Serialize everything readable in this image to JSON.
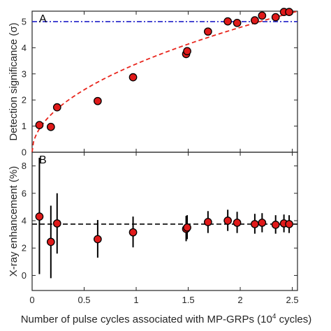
{
  "chart_data": [
    {
      "panel": "A",
      "type": "scatter",
      "xlabel": "Number of pulse cycles associated with MP-GRPs (10",
      "xlabel_sup": "4",
      "xlabel_suffix": " cycles)",
      "ylabel": "Detection significance (σ)",
      "xlim": [
        0,
        2.55
      ],
      "ylim": [
        0,
        5.4
      ],
      "xticks": [
        0,
        0.5,
        1,
        1.5,
        2,
        2.5
      ],
      "xtick_labels": [
        "0",
        "0.5",
        "1",
        "1.5",
        "2",
        "2.5"
      ],
      "yticks": [
        0,
        1,
        2,
        3,
        4,
        5
      ],
      "ytick_labels": [
        "0",
        "1",
        "2",
        "3",
        "4",
        "5"
      ],
      "points": [
        {
          "x": 0.07,
          "y": 1.04
        },
        {
          "x": 0.18,
          "y": 0.97
        },
        {
          "x": 0.24,
          "y": 1.72
        },
        {
          "x": 0.63,
          "y": 1.96
        },
        {
          "x": 0.97,
          "y": 2.87
        },
        {
          "x": 1.48,
          "y": 3.76
        },
        {
          "x": 1.49,
          "y": 3.87
        },
        {
          "x": 1.69,
          "y": 4.62
        },
        {
          "x": 1.88,
          "y": 5.01
        },
        {
          "x": 1.97,
          "y": 4.95
        },
        {
          "x": 2.14,
          "y": 5.05
        },
        {
          "x": 2.21,
          "y": 5.23
        },
        {
          "x": 2.34,
          "y": 5.17
        },
        {
          "x": 2.42,
          "y": 5.37
        },
        {
          "x": 2.47,
          "y": 5.37
        }
      ],
      "reference_line": {
        "y": 5,
        "style": "dash-dot",
        "color": "#1f1fc8"
      },
      "fit_curve": {
        "form": "sqrt",
        "coef": 3.38,
        "style": "dashed",
        "color": "#e8251c"
      },
      "colors": {
        "marker_fill": "#e01a1a",
        "marker_edge": "#000000"
      }
    },
    {
      "panel": "B",
      "type": "scatter",
      "ylabel": "X-ray enhancement (%)",
      "xlim": [
        0,
        2.55
      ],
      "ylim": [
        -1.1,
        9.0
      ],
      "yticks": [
        0,
        2,
        4,
        6,
        8
      ],
      "ytick_labels": [
        "0",
        "2",
        "4",
        "6",
        "8"
      ],
      "points": [
        {
          "x": 0.07,
          "y": 4.3,
          "lo": 0.1,
          "hi": 8.6
        },
        {
          "x": 0.18,
          "y": 2.45,
          "lo": -0.2,
          "hi": 5.1
        },
        {
          "x": 0.24,
          "y": 3.8,
          "lo": 1.6,
          "hi": 6.0
        },
        {
          "x": 0.63,
          "y": 2.65,
          "lo": 1.3,
          "hi": 4.05
        },
        {
          "x": 0.97,
          "y": 3.15,
          "lo": 2.05,
          "hi": 4.3
        },
        {
          "x": 1.48,
          "y": 3.4,
          "lo": 2.5,
          "hi": 4.35
        },
        {
          "x": 1.49,
          "y": 3.5,
          "lo": 2.65,
          "hi": 4.4
        },
        {
          "x": 1.69,
          "y": 3.9,
          "lo": 3.1,
          "hi": 4.7
        },
        {
          "x": 1.88,
          "y": 4.0,
          "lo": 3.25,
          "hi": 4.8
        },
        {
          "x": 1.97,
          "y": 3.85,
          "lo": 3.1,
          "hi": 4.65
        },
        {
          "x": 2.14,
          "y": 3.75,
          "lo": 3.05,
          "hi": 4.5
        },
        {
          "x": 2.21,
          "y": 3.85,
          "lo": 3.15,
          "hi": 4.55
        },
        {
          "x": 2.34,
          "y": 3.7,
          "lo": 3.05,
          "hi": 4.4
        },
        {
          "x": 2.42,
          "y": 3.8,
          "lo": 3.15,
          "hi": 4.45
        },
        {
          "x": 2.47,
          "y": 3.75,
          "lo": 3.1,
          "hi": 4.4
        }
      ],
      "reference_line": {
        "y": 3.75,
        "style": "dashed",
        "color": "#000000"
      },
      "colors": {
        "marker_fill": "#e01a1a",
        "marker_edge": "#000000"
      }
    }
  ]
}
